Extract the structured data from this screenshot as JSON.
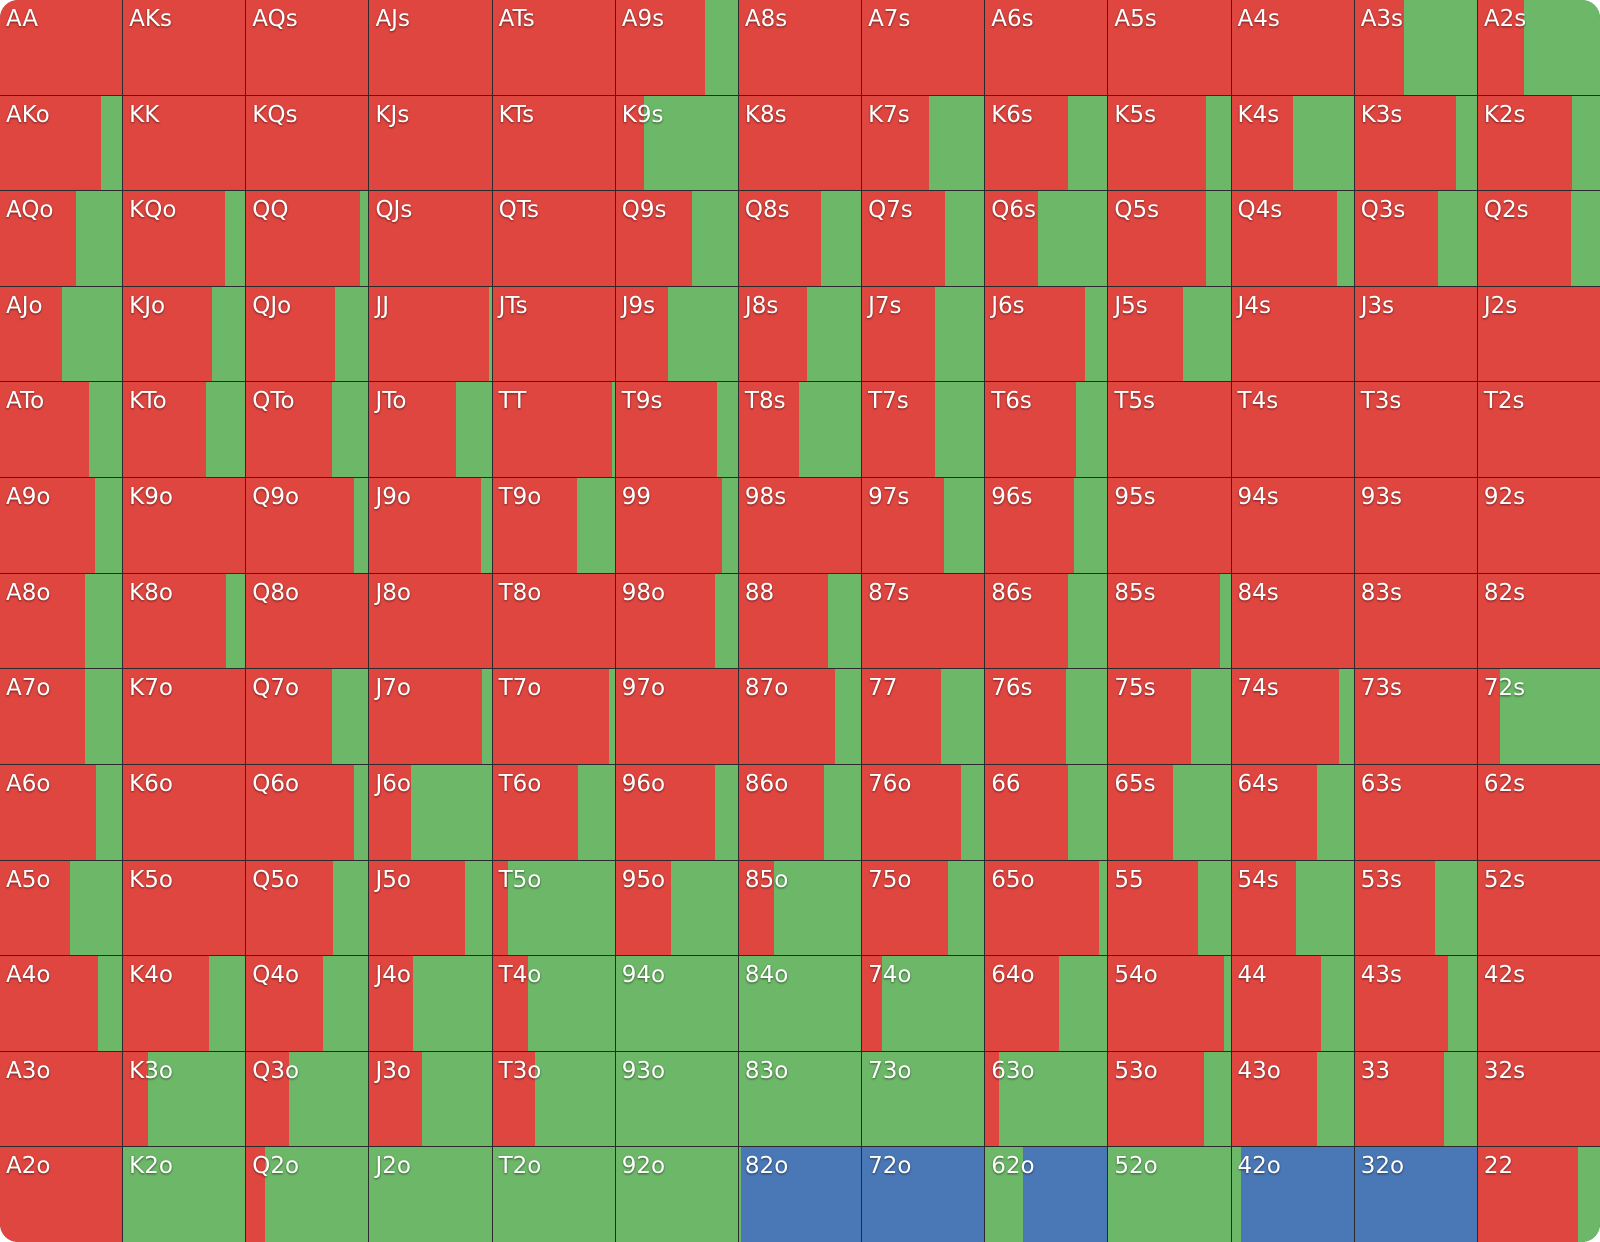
{
  "colors": {
    "red": "#e04640",
    "green": "#6db868",
    "blue": "#4a78b6"
  },
  "cells": [
    {
      "label": "AA",
      "r": 1
    },
    {
      "label": "AKs",
      "r": 1
    },
    {
      "label": "AQs",
      "r": 1
    },
    {
      "label": "AJs",
      "r": 1
    },
    {
      "label": "ATs",
      "r": 1
    },
    {
      "label": "A9s",
      "r": 0.73
    },
    {
      "label": "A8s",
      "r": 1
    },
    {
      "label": "A7s",
      "r": 1
    },
    {
      "label": "A6s",
      "r": 1
    },
    {
      "label": "A5s",
      "r": 1
    },
    {
      "label": "A4s",
      "r": 1
    },
    {
      "label": "A3s",
      "r": 0.4
    },
    {
      "label": "A2s",
      "r": 0.38
    },
    {
      "label": "AKo",
      "r": 0.83
    },
    {
      "label": "KK",
      "r": 1
    },
    {
      "label": "KQs",
      "r": 1
    },
    {
      "label": "KJs",
      "r": 1
    },
    {
      "label": "KTs",
      "r": 1
    },
    {
      "label": "K9s",
      "r": 0.23
    },
    {
      "label": "K8s",
      "r": 1
    },
    {
      "label": "K7s",
      "r": 0.55
    },
    {
      "label": "K6s",
      "r": 0.68
    },
    {
      "label": "K5s",
      "r": 0.8
    },
    {
      "label": "K4s",
      "r": 0.5
    },
    {
      "label": "K3s",
      "r": 0.83
    },
    {
      "label": "K2s",
      "r": 0.77
    },
    {
      "label": "AQo",
      "r": 0.62
    },
    {
      "label": "KQo",
      "r": 0.83
    },
    {
      "label": "QQ",
      "r": 0.93
    },
    {
      "label": "QJs",
      "r": 1
    },
    {
      "label": "QTs",
      "r": 1
    },
    {
      "label": "Q9s",
      "r": 0.62
    },
    {
      "label": "Q8s",
      "r": 0.67
    },
    {
      "label": "Q7s",
      "r": 0.68
    },
    {
      "label": "Q6s",
      "r": 0.43
    },
    {
      "label": "Q5s",
      "r": 0.8
    },
    {
      "label": "Q4s",
      "r": 0.86
    },
    {
      "label": "Q3s",
      "r": 0.68
    },
    {
      "label": "Q2s",
      "r": 0.76
    },
    {
      "label": "AJo",
      "r": 0.51
    },
    {
      "label": "KJo",
      "r": 0.73
    },
    {
      "label": "QJo",
      "r": 0.73
    },
    {
      "label": "JJ",
      "r": 0.98
    },
    {
      "label": "JTs",
      "r": 1
    },
    {
      "label": "J9s",
      "r": 0.43
    },
    {
      "label": "J8s",
      "r": 0.56
    },
    {
      "label": "J7s",
      "r": 0.6
    },
    {
      "label": "J6s",
      "r": 0.82
    },
    {
      "label": "J5s",
      "r": 0.61
    },
    {
      "label": "J4s",
      "r": 1
    },
    {
      "label": "J3s",
      "r": 1
    },
    {
      "label": "J2s",
      "r": 1
    },
    {
      "label": "ATo",
      "r": 0.73
    },
    {
      "label": "KTo",
      "r": 0.68
    },
    {
      "label": "QTo",
      "r": 0.7
    },
    {
      "label": "JTo",
      "r": 0.71
    },
    {
      "label": "TT",
      "r": 0.98
    },
    {
      "label": "T9s",
      "r": 0.83
    },
    {
      "label": "T8s",
      "r": 0.49
    },
    {
      "label": "T7s",
      "r": 0.6
    },
    {
      "label": "T6s",
      "r": 0.74
    },
    {
      "label": "T5s",
      "r": 1
    },
    {
      "label": "T4s",
      "r": 1
    },
    {
      "label": "T3s",
      "r": 1
    },
    {
      "label": "T2s",
      "r": 1
    },
    {
      "label": "A9o",
      "r": 0.78
    },
    {
      "label": "K9o",
      "r": 1
    },
    {
      "label": "Q9o",
      "r": 0.88
    },
    {
      "label": "J9o",
      "r": 0.91
    },
    {
      "label": "T9o",
      "r": 0.69
    },
    {
      "label": "99",
      "r": 0.87
    },
    {
      "label": "98s",
      "r": 1
    },
    {
      "label": "97s",
      "r": 0.67
    },
    {
      "label": "96s",
      "r": 0.73
    },
    {
      "label": "95s",
      "r": 1
    },
    {
      "label": "94s",
      "r": 1
    },
    {
      "label": "93s",
      "r": 1
    },
    {
      "label": "92s",
      "r": 1
    },
    {
      "label": "A8o",
      "r": 0.7
    },
    {
      "label": "K8o",
      "r": 0.84
    },
    {
      "label": "Q8o",
      "r": 1
    },
    {
      "label": "J8o",
      "r": 1
    },
    {
      "label": "T8o",
      "r": 1
    },
    {
      "label": "98o",
      "r": 0.81
    },
    {
      "label": "88",
      "r": 0.73
    },
    {
      "label": "87s",
      "r": 1
    },
    {
      "label": "86s",
      "r": 0.68
    },
    {
      "label": "85s",
      "r": 0.91
    },
    {
      "label": "84s",
      "r": 1
    },
    {
      "label": "83s",
      "r": 1
    },
    {
      "label": "82s",
      "r": 1
    },
    {
      "label": "A7o",
      "r": 0.7
    },
    {
      "label": "K7o",
      "r": 1
    },
    {
      "label": "Q7o",
      "r": 0.7
    },
    {
      "label": "J7o",
      "r": 0.92
    },
    {
      "label": "T7o",
      "r": 0.95
    },
    {
      "label": "97o",
      "r": 1
    },
    {
      "label": "87o",
      "r": 0.79
    },
    {
      "label": "77",
      "r": 0.65
    },
    {
      "label": "76s",
      "r": 0.66
    },
    {
      "label": "75s",
      "r": 0.68
    },
    {
      "label": "74s",
      "r": 0.88
    },
    {
      "label": "73s",
      "r": 1
    },
    {
      "label": "72s",
      "r": 0.18
    },
    {
      "label": "A6o",
      "r": 0.79
    },
    {
      "label": "K6o",
      "r": 1
    },
    {
      "label": "Q6o",
      "r": 0.88
    },
    {
      "label": "J6o",
      "r": 0.34
    },
    {
      "label": "T6o",
      "r": 0.7
    },
    {
      "label": "96o",
      "r": 0.81
    },
    {
      "label": "86o",
      "r": 0.7
    },
    {
      "label": "76o",
      "r": 0.81
    },
    {
      "label": "66",
      "r": 0.68
    },
    {
      "label": "65s",
      "r": 0.53
    },
    {
      "label": "64s",
      "r": 0.7
    },
    {
      "label": "63s",
      "r": 1
    },
    {
      "label": "62s",
      "r": 1
    },
    {
      "label": "A5o",
      "r": 0.57
    },
    {
      "label": "K5o",
      "r": 1
    },
    {
      "label": "Q5o",
      "r": 0.71
    },
    {
      "label": "J5o",
      "r": 0.78
    },
    {
      "label": "T5o",
      "r": 0.13
    },
    {
      "label": "95o",
      "r": 0.45
    },
    {
      "label": "85o",
      "r": 0.29
    },
    {
      "label": "75o",
      "r": 0.7
    },
    {
      "label": "65o",
      "r": 0.93
    },
    {
      "label": "55",
      "r": 0.73
    },
    {
      "label": "54s",
      "r": 0.53
    },
    {
      "label": "53s",
      "r": 0.66
    },
    {
      "label": "52s",
      "r": 1
    },
    {
      "label": "A4o",
      "r": 0.8
    },
    {
      "label": "K4o",
      "r": 0.7
    },
    {
      "label": "Q4o",
      "r": 0.63
    },
    {
      "label": "J4o",
      "r": 0.36
    },
    {
      "label": "T4o",
      "r": 0.29
    },
    {
      "label": "94o",
      "r": 0
    },
    {
      "label": "84o",
      "r": 0
    },
    {
      "label": "74o",
      "r": 0.16
    },
    {
      "label": "64o",
      "r": 0.6
    },
    {
      "label": "54o",
      "r": 0.95
    },
    {
      "label": "44",
      "r": 0.73
    },
    {
      "label": "43s",
      "r": 0.76
    },
    {
      "label": "42s",
      "r": 1
    },
    {
      "label": "A3o",
      "r": 1
    },
    {
      "label": "K3o",
      "r": 0.2
    },
    {
      "label": "Q3o",
      "r": 0.35
    },
    {
      "label": "J3o",
      "r": 0.43
    },
    {
      "label": "T3o",
      "r": 0.35
    },
    {
      "label": "93o",
      "r": 0
    },
    {
      "label": "83o",
      "r": 0
    },
    {
      "label": "73o",
      "r": 0
    },
    {
      "label": "63o",
      "r": 0.11
    },
    {
      "label": "53o",
      "r": 0.78
    },
    {
      "label": "43o",
      "r": 0.7
    },
    {
      "label": "33",
      "r": 0.73
    },
    {
      "label": "32s",
      "r": 1
    },
    {
      "label": "A2o",
      "r": 1
    },
    {
      "label": "K2o",
      "r": 0
    },
    {
      "label": "Q2o",
      "r": 0.15
    },
    {
      "label": "J2o",
      "r": 0
    },
    {
      "label": "T2o",
      "r": 0
    },
    {
      "label": "92o",
      "r": 0
    },
    {
      "label": "82o",
      "r": 0,
      "g": 0.02,
      "b": 0.98
    },
    {
      "label": "72o",
      "r": 0,
      "g": 0,
      "b": 1
    },
    {
      "label": "62o",
      "r": 0,
      "g": 0.31,
      "b": 0.69
    },
    {
      "label": "52o",
      "r": 0,
      "g": 1,
      "b": 0
    },
    {
      "label": "42o",
      "r": 0,
      "g": 0.08,
      "b": 0.92
    },
    {
      "label": "32o",
      "r": 0,
      "g": 0,
      "b": 1
    },
    {
      "label": "22",
      "r": 0.82
    }
  ]
}
